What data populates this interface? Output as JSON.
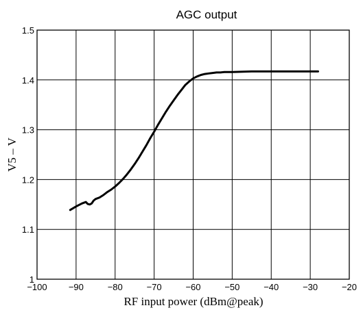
{
  "chart_data": {
    "type": "line",
    "title": "AGC output",
    "xlabel": "RF input power (dBm@peak)",
    "ylabel": "V5   –   V",
    "xlim": [
      -100,
      -20
    ],
    "ylim": [
      1.0,
      1.5
    ],
    "xticks": [
      -100,
      -90,
      -80,
      -70,
      -60,
      -50,
      -40,
      -30,
      -20
    ],
    "xtick_labels": [
      "−100",
      "−90",
      "−80",
      "−70",
      "−60",
      "−50",
      "−40",
      "−30",
      "−20"
    ],
    "yticks": [
      1.0,
      1.1,
      1.2,
      1.3,
      1.4,
      1.5
    ],
    "ytick_labels": [
      "1",
      "1.1",
      "1.2",
      "1.3",
      "1.4",
      "1.5"
    ],
    "grid": true,
    "line_color": "#000000",
    "series": [
      {
        "x": [
          -91.5,
          -90,
          -88.5,
          -87.5,
          -87,
          -86.5,
          -86,
          -85.5,
          -85,
          -84,
          -83,
          -82,
          -81,
          -80,
          -79,
          -78,
          -77,
          -76,
          -75,
          -74,
          -73,
          -72,
          -71,
          -70,
          -69,
          -68,
          -67,
          -66,
          -65,
          -64,
          -63,
          -62,
          -61,
          -60,
          -59,
          -58,
          -57,
          -56,
          -55,
          -54,
          -53,
          -52,
          -50,
          -45,
          -40,
          -35,
          -30,
          -28
        ],
        "y": [
          1.139,
          1.146,
          1.152,
          1.155,
          1.151,
          1.15,
          1.152,
          1.158,
          1.161,
          1.164,
          1.169,
          1.175,
          1.18,
          1.186,
          1.193,
          1.201,
          1.21,
          1.22,
          1.231,
          1.243,
          1.256,
          1.269,
          1.283,
          1.296,
          1.31,
          1.323,
          1.336,
          1.348,
          1.359,
          1.37,
          1.38,
          1.39,
          1.397,
          1.403,
          1.407,
          1.41,
          1.412,
          1.413,
          1.414,
          1.415,
          1.415,
          1.416,
          1.416,
          1.417,
          1.417,
          1.417,
          1.417,
          1.417
        ]
      }
    ]
  }
}
